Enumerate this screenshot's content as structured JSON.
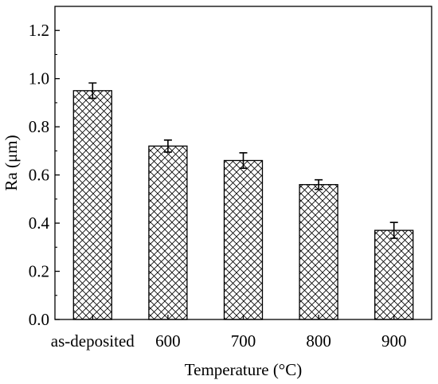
{
  "chart_data": {
    "type": "bar",
    "categories": [
      "as-deposited",
      "600",
      "700",
      "800",
      "900"
    ],
    "values": [
      0.95,
      0.72,
      0.66,
      0.56,
      0.37
    ],
    "errors": [
      0.032,
      0.025,
      0.032,
      0.02,
      0.033
    ],
    "xlabel": "Temperature (°C)",
    "ylabel": "Ra (μm)",
    "ylim": [
      0,
      1.3
    ],
    "yticks": [
      0.0,
      0.2,
      0.4,
      0.6,
      0.8,
      1.0,
      1.2
    ],
    "ytick_labels": [
      "0.0",
      "0.2",
      "0.4",
      "0.6",
      "0.8",
      "1.0",
      "1.2"
    ],
    "bar_fill": "crosshatch",
    "grid": false,
    "colors": {
      "bar_edge": "#000000",
      "hatch": "#000000",
      "background": "#ffffff"
    }
  }
}
